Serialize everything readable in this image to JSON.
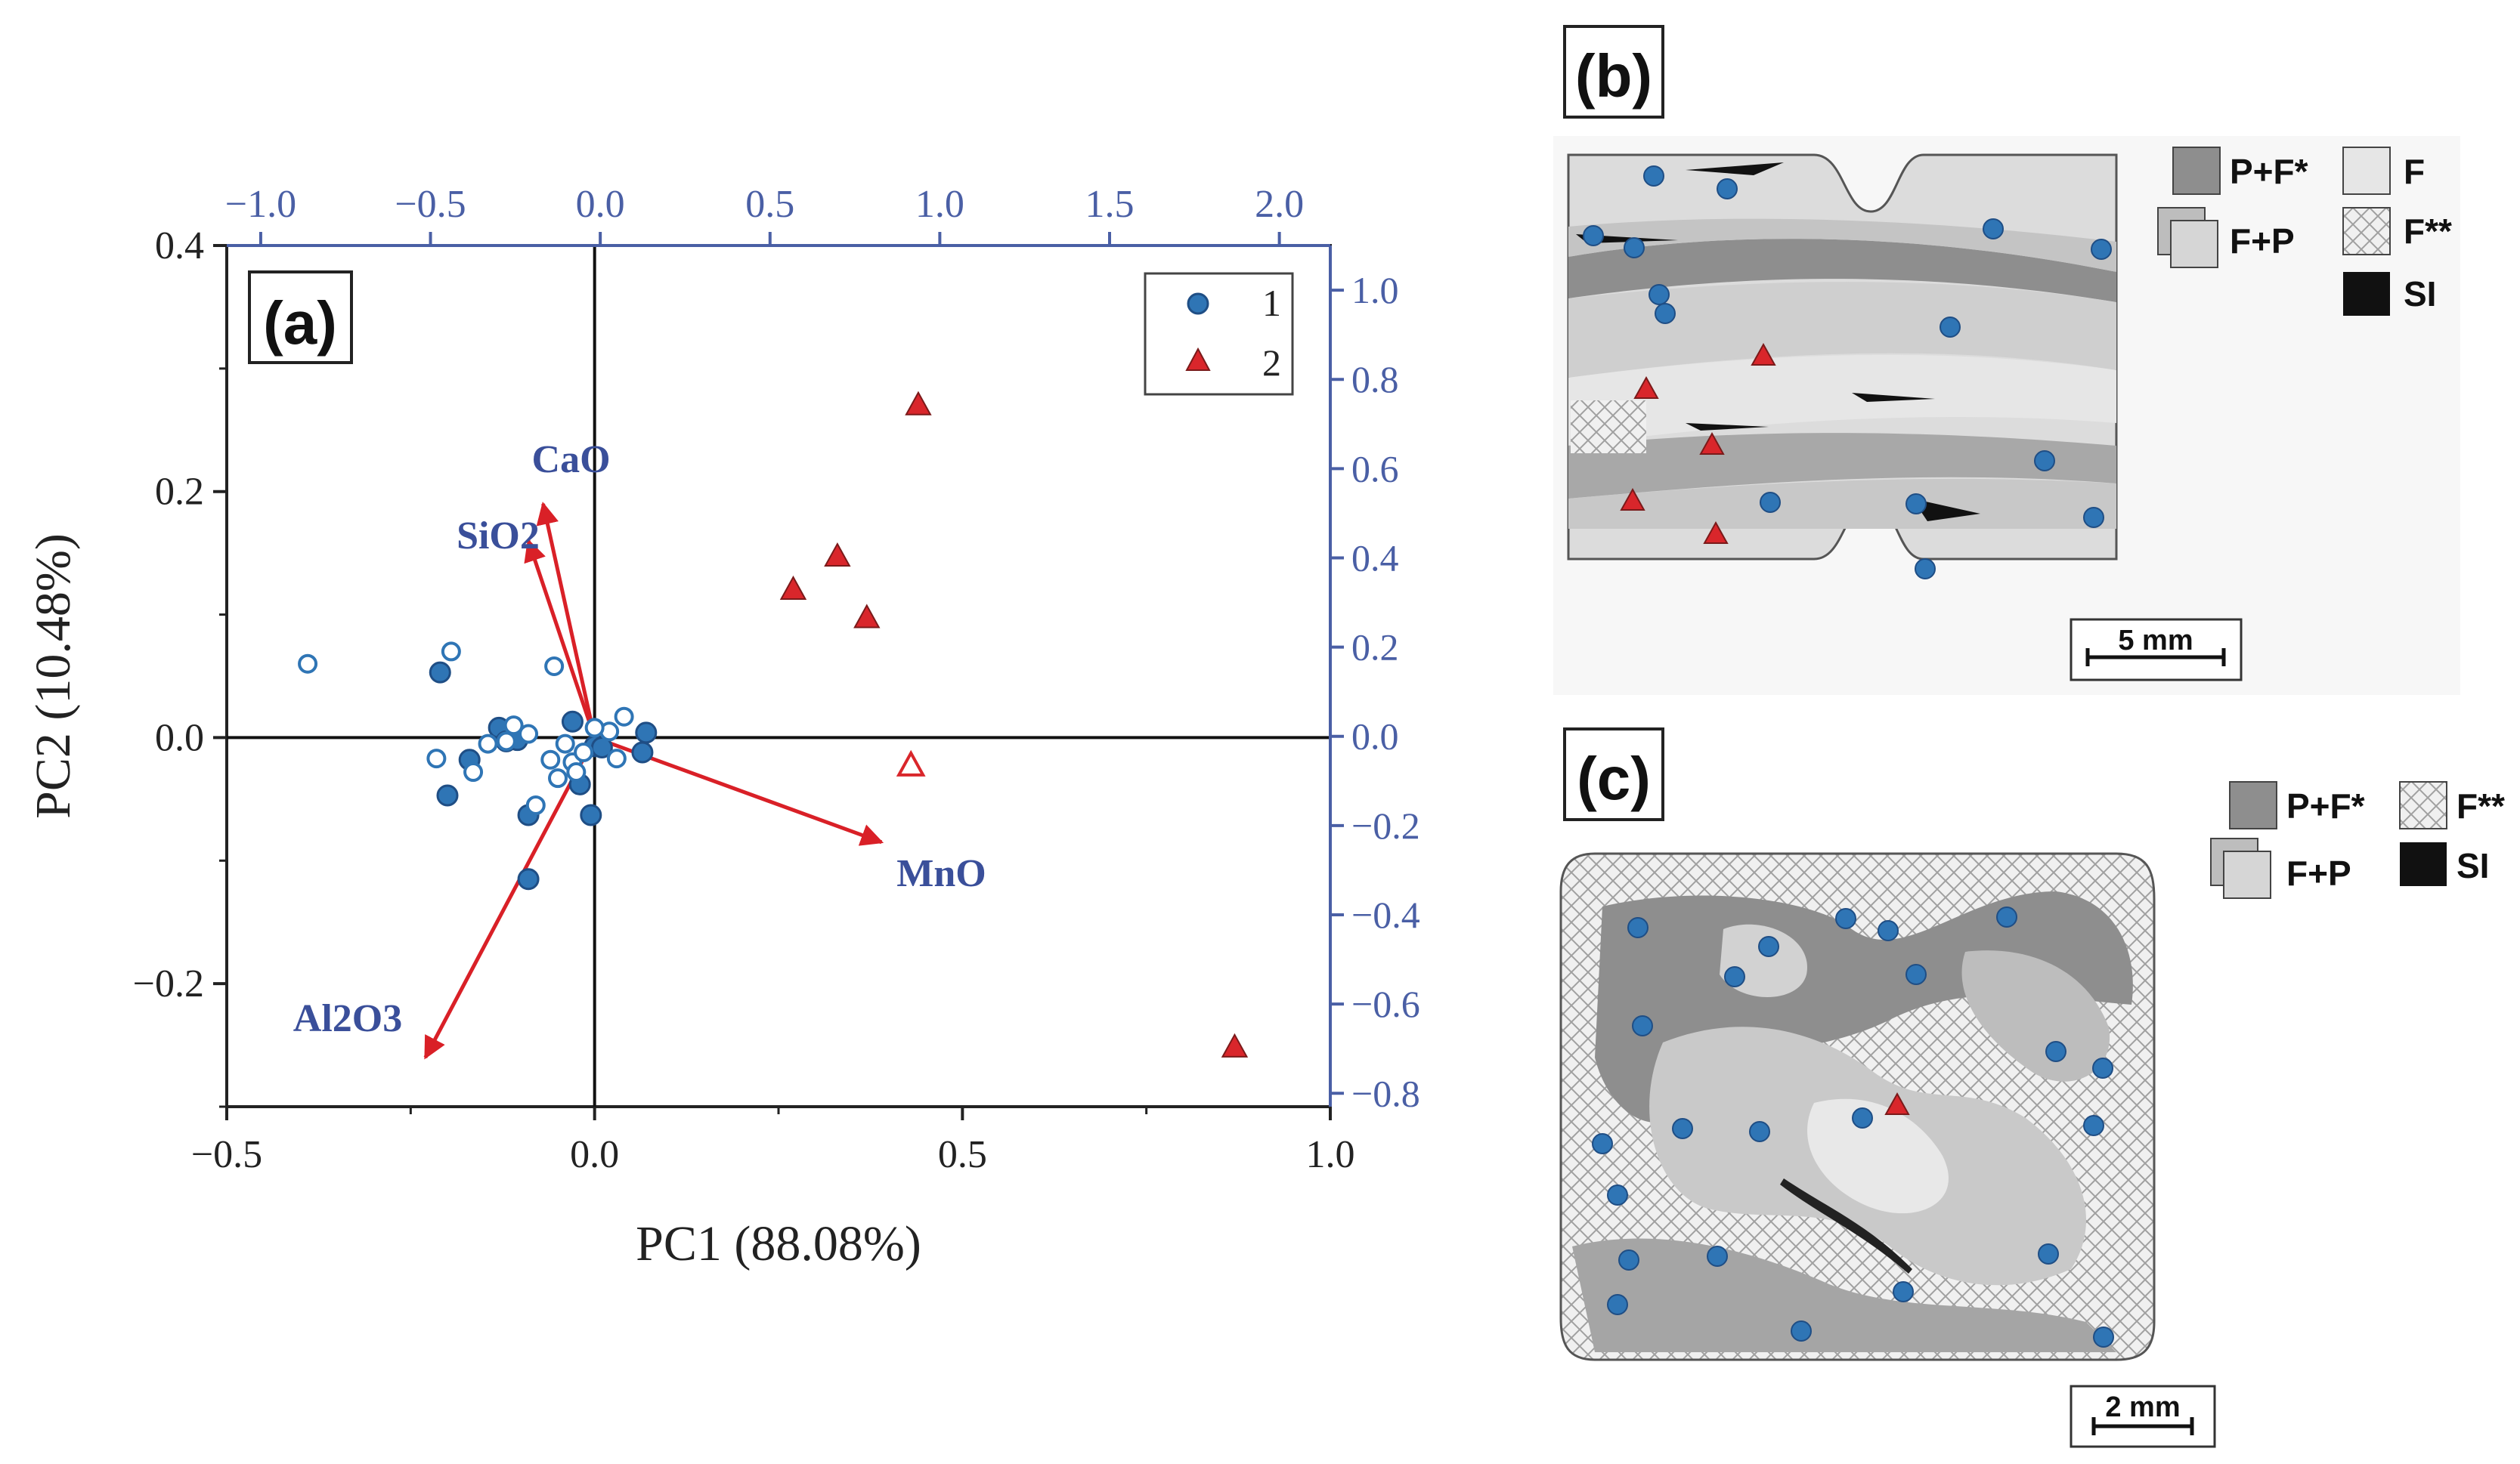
{
  "colors": {
    "blue": "#2f75b5",
    "blue_dark": "#1f4e85",
    "red": "#d9262b",
    "axis_blue": "#4a5fa5",
    "label_blue": "#3a4f9a",
    "arrow_red": "#d92027"
  },
  "chart_data": [
    {
      "panel": "(a)",
      "type": "scatter",
      "xlabel": "PC1 (88.08%)",
      "ylabel": "PC2 (10.48%)",
      "xlim": [
        -0.5,
        1.0
      ],
      "ylim": [
        -0.3,
        0.4
      ],
      "x_ticks": [
        "−0.5",
        "0.0",
        "0.5",
        "1.0"
      ],
      "y_ticks": [
        "0.4",
        "0.2",
        "0.0",
        "−0.2"
      ],
      "top_axis": {
        "lim": [
          -1.1,
          2.15
        ],
        "ticks": [
          "−1.0",
          "−0.5",
          "0.0",
          "0.5",
          "1.0",
          "1.5",
          "2.0"
        ]
      },
      "right_axis": {
        "lim": [
          -0.83,
          1.1
        ],
        "ticks": [
          "1.0",
          "0.8",
          "0.6",
          "0.4",
          "0.2",
          "0.0",
          "−0.2",
          "−0.4",
          "−0.6",
          "−0.8"
        ]
      },
      "legend": {
        "position": "top-right",
        "entries": [
          "1",
          "2"
        ]
      },
      "series": [
        {
          "name": "1",
          "marker": "circle-filled",
          "points": [
            [
              -0.21,
              0.053
            ],
            [
              -0.13,
              0.008
            ],
            [
              -0.12,
              -0.003
            ],
            [
              -0.105,
              -0.002
            ],
            [
              -0.17,
              -0.018
            ],
            [
              -0.2,
              -0.047
            ],
            [
              -0.09,
              -0.063
            ],
            [
              -0.03,
              0.013
            ],
            [
              0.0,
              -0.007
            ],
            [
              0.01,
              -0.008
            ],
            [
              -0.02,
              -0.038
            ],
            [
              0.07,
              0.004
            ],
            [
              0.065,
              -0.012
            ],
            [
              -0.005,
              -0.063
            ],
            [
              -0.09,
              -0.115
            ]
          ]
        },
        {
          "name": "",
          "marker": "circle-open",
          "points": [
            [
              -0.39,
              0.06
            ],
            [
              -0.195,
              0.07
            ],
            [
              -0.215,
              -0.017
            ],
            [
              -0.165,
              -0.028
            ],
            [
              -0.145,
              -0.005
            ],
            [
              -0.12,
              -0.003
            ],
            [
              -0.08,
              -0.055
            ],
            [
              -0.055,
              0.058
            ],
            [
              -0.04,
              -0.005
            ],
            [
              -0.03,
              -0.02
            ],
            [
              -0.015,
              -0.012
            ],
            [
              0.02,
              0.005
            ],
            [
              0.03,
              -0.017
            ],
            [
              0.04,
              0.017
            ],
            [
              -0.06,
              -0.018
            ],
            [
              -0.05,
              -0.033
            ],
            [
              -0.09,
              0.003
            ],
            [
              -0.11,
              0.01
            ],
            [
              0.0,
              0.008
            ],
            [
              -0.025,
              -0.028
            ]
          ]
        },
        {
          "name": "2",
          "marker": "triangle-filled",
          "points": [
            [
              0.44,
              0.27
            ],
            [
              0.27,
              0.12
            ],
            [
              0.33,
              0.147
            ],
            [
              0.37,
              0.097
            ],
            [
              0.87,
              -0.252
            ]
          ]
        },
        {
          "name": "",
          "marker": "triangle-open",
          "points": [
            [
              0.43,
              -0.023
            ]
          ]
        }
      ],
      "loadings": [
        {
          "label": "CaO",
          "x": -0.07,
          "y": 0.19
        },
        {
          "label": "SiO2",
          "x": -0.09,
          "y": 0.16
        },
        {
          "label": "MnO",
          "x": 0.39,
          "y": -0.085
        },
        {
          "label": "Al2O3",
          "x": -0.23,
          "y": -0.26
        }
      ]
    }
  ],
  "panel_b": {
    "label": "(b)",
    "legend": [
      "P+F*",
      "F",
      "F+P",
      "F**",
      "SI"
    ],
    "scale_bar": "5 mm"
  },
  "panel_c": {
    "label": "(c)",
    "legend": [
      "P+F*",
      "F**",
      "F+P",
      "SI"
    ],
    "scale_bar": "2 mm"
  }
}
